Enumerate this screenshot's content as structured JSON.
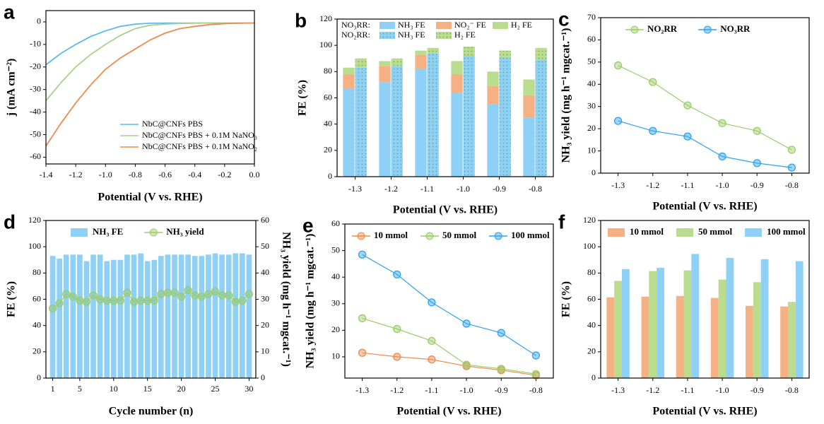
{
  "chart_data": [
    {
      "type": "line",
      "panel": "a",
      "xlabel": "Potential (V vs. RHE)",
      "ylabel": "j (mA cm⁻²)",
      "x": [
        -1.4,
        -1.3,
        -1.2,
        -1.1,
        -1.0,
        -0.9,
        -0.8,
        -0.7,
        -0.6,
        -0.5,
        -0.4,
        -0.3,
        -0.2,
        -0.1,
        0.0
      ],
      "xlim": [
        -1.4,
        0
      ],
      "xticks": [
        -1.4,
        -1.2,
        {
          "value": -1,
          "label": "-1.0"
        },
        -0.8,
        -0.6,
        -0.4,
        -0.2,
        {
          "value": 0,
          "label": "0.0"
        }
      ],
      "ylim": [
        -63,
        5
      ],
      "yticks": [
        0,
        -10,
        -20,
        -30,
        -40,
        -50,
        -60
      ],
      "legend": "lower right",
      "markers": false,
      "series": [
        {
          "name": "NbC@CNFs PBS",
          "color": "#5bb8f0",
          "values": [
            -19,
            -14,
            -10,
            -6.5,
            -4,
            -2,
            -1,
            -0.6,
            -0.5,
            -0.5,
            -0.5,
            -0.5,
            -0.5,
            -0.5,
            -0.5
          ]
        },
        {
          "name": "NbC@CNFs PBS + 0.1M NaNO₃",
          "color": "#a8d08d",
          "values": [
            -35,
            -27,
            -20,
            -14.5,
            -10,
            -6,
            -3,
            -1.5,
            -1,
            -0.7,
            -0.6,
            -0.5,
            -0.5,
            -0.5,
            -0.5
          ]
        },
        {
          "name": "NbC@CNFs PBS + 0.1M NaNO₂",
          "color": "#f08a4b",
          "values": [
            -55,
            -45,
            -36,
            -28,
            -21,
            -16,
            -12,
            -8,
            -5,
            -3,
            -2,
            -1.2,
            -0.8,
            -0.6,
            -0.5
          ]
        }
      ]
    },
    {
      "type": "stacked_bar",
      "panel": "b",
      "xlabel": "Potential (V vs. RHE)",
      "ylabel": "FE (%)",
      "categories": [
        "-1.3",
        "-1.2",
        "-1.1",
        "-1.0",
        "-0.9",
        "-0.8"
      ],
      "ylim": [
        0,
        120
      ],
      "yticks": [
        0,
        20,
        40,
        60,
        80,
        100,
        120
      ],
      "legend": "upper left",
      "groups": [
        {
          "name": "NO₃RR:",
          "pattern": "none",
          "series": [
            {
              "name": "NH₃ FE",
              "color": "#8fd0f7",
              "values": [
                67,
                72,
                82,
                64,
                55,
                45
              ]
            },
            {
              "name": "NO₂⁻ FE",
              "color": "#f5b184",
              "values": [
                11,
                12,
                11,
                14,
                14,
                17
              ]
            },
            {
              "name": "H₂ FE",
              "color": "#b9dc8e",
              "values": [
                5,
                4,
                3,
                10,
                11,
                12
              ]
            }
          ]
        },
        {
          "name": "NO₂RR:",
          "pattern": "dots",
          "series": [
            {
              "name": "NH₃ FE",
              "color": "#8fd0f7",
              "values": [
                83,
                84,
                94,
                92,
                91,
                89
              ]
            },
            {
              "name": "H₂ FE",
              "color": "#b9dc8e",
              "values": [
                7,
                6,
                4,
                7,
                5,
                9
              ]
            }
          ]
        }
      ]
    },
    {
      "type": "line",
      "panel": "c",
      "xlabel": "Potential (V vs. RHE)",
      "ylabel": "NH₃ yield (mg h⁻¹ mgcat.⁻¹)",
      "categories": [
        "-1.3",
        "-1.2",
        "-1.1",
        "-1.0",
        "-0.9",
        "-0.8"
      ],
      "ylim": [
        0,
        70
      ],
      "yticks": [
        0,
        10,
        20,
        30,
        40,
        50,
        60,
        70
      ],
      "legend": "upper center",
      "markers": true,
      "series": [
        {
          "name": "NO₂RR",
          "color": "#9acd68",
          "values": [
            48.5,
            41,
            30.5,
            22.5,
            19,
            10.5
          ]
        },
        {
          "name": "NO₃RR",
          "color": "#2fa3ef",
          "values": [
            23.5,
            19,
            16.5,
            7.5,
            4.5,
            2.5
          ]
        }
      ]
    },
    {
      "type": "bar_line",
      "panel": "d",
      "xlabel": "Cycle number (n)",
      "ylabel": "FE (%)",
      "y2label": "NH₃ yield (mg h⁻¹ mgcat.⁻¹)",
      "x": [
        1,
        2,
        3,
        4,
        5,
        6,
        7,
        8,
        9,
        10,
        11,
        12,
        13,
        14,
        15,
        16,
        17,
        18,
        19,
        20,
        21,
        22,
        23,
        24,
        25,
        26,
        27,
        28,
        29,
        30
      ],
      "xlim": [
        0,
        31
      ],
      "xticks": [
        1,
        5,
        10,
        15,
        20,
        25,
        30
      ],
      "ylim": [
        0,
        120
      ],
      "yticks": [
        0,
        20,
        40,
        60,
        80,
        100,
        120
      ],
      "y2lim": [
        0,
        60
      ],
      "y2ticks": [
        0,
        10,
        20,
        30,
        40,
        50,
        60
      ],
      "legend": "upper center",
      "markers": true,
      "series": [
        {
          "name": "NH₃ FE",
          "color": "#8fd0f7",
          "values": [
            93,
            91,
            94,
            94,
            94,
            89,
            94,
            94,
            89,
            90,
            90,
            94,
            94,
            95,
            89,
            90,
            93,
            94,
            94,
            94,
            94,
            93,
            93,
            94,
            95,
            94,
            94,
            95,
            95,
            94
          ]
        },
        {
          "name": "NH₃ yield",
          "color": "#9acd68",
          "axis": "y2",
          "values": [
            26.5,
            28.5,
            32,
            31,
            29.5,
            29,
            31.5,
            30,
            29.5,
            29.5,
            29.5,
            32.5,
            29,
            29.5,
            29.5,
            29.5,
            32,
            32.5,
            32.5,
            31,
            33.5,
            31.5,
            31,
            32,
            33,
            31.5,
            31.5,
            29,
            29.5,
            32
          ]
        }
      ]
    },
    {
      "type": "line",
      "panel": "e",
      "xlabel": "Potential (V vs. RHE)",
      "ylabel": "NH₃ yield (mg h⁻¹ mgcat.⁻¹)",
      "categories": [
        "-1.3",
        "-1.2",
        "-1.1",
        "-1.0",
        "-0.9",
        "-0.8"
      ],
      "ylim": [
        2,
        60
      ],
      "yticks": [
        10,
        20,
        30,
        40,
        50,
        60
      ],
      "legend": "upper left",
      "markers": true,
      "series": [
        {
          "name": "10 mmol",
          "color": "#f08a4b",
          "values": [
            11.5,
            10,
            9,
            6.5,
            5,
            3
          ]
        },
        {
          "name": "50 mmol",
          "color": "#9acd68",
          "values": [
            24.5,
            20.5,
            16,
            7,
            5.5,
            3.5
          ]
        },
        {
          "name": "100 mmol",
          "color": "#2fa3ef",
          "values": [
            48.5,
            41,
            30.5,
            22.5,
            19,
            10.5
          ]
        }
      ]
    },
    {
      "type": "grouped_bar",
      "panel": "f",
      "xlabel": "Potential (V vs. RHE)",
      "ylabel": "FE (%)",
      "categories": [
        "-1.3",
        "-1.2",
        "-1.1",
        "-1.0",
        "-0.9",
        "-0.8"
      ],
      "ylim": [
        0,
        120
      ],
      "yticks": [
        0,
        20,
        40,
        60,
        80,
        100,
        120
      ],
      "legend": "upper left",
      "series": [
        {
          "name": "10 mmol",
          "color": "#f5b184",
          "values": [
            61.5,
            62,
            62.5,
            61,
            55,
            54.5
          ]
        },
        {
          "name": "50 mmol",
          "color": "#b9dc8e",
          "values": [
            74,
            81.5,
            82,
            75,
            73,
            58
          ]
        },
        {
          "name": "100 mmol",
          "color": "#8fd0f7",
          "values": [
            83,
            84,
            94.5,
            91.5,
            90.5,
            89
          ]
        }
      ]
    }
  ]
}
